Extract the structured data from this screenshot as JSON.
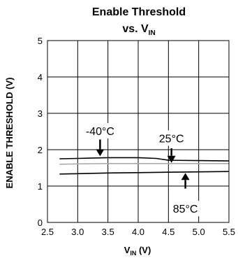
{
  "chart_data": {
    "type": "line",
    "title_line1": "Enable Threshold",
    "title_line2_prefix": "vs. V",
    "title_line2_sub": "IN",
    "xlabel_main": "V",
    "xlabel_sub": "IN",
    "xlabel_suffix": " (V)",
    "ylabel": "ENABLE THRESHOLD (V)",
    "xlim": [
      2.5,
      5.5
    ],
    "ylim": [
      0,
      5
    ],
    "xticks": [
      2.5,
      3.0,
      3.5,
      4.0,
      4.5,
      5.0,
      5.5
    ],
    "xtick_labels": [
      "2.5",
      "3.0",
      "3.5",
      "4.0",
      "4.5",
      "5.0",
      "5.5"
    ],
    "yticks": [
      0,
      1,
      2,
      3,
      4,
      5
    ],
    "ytick_labels": [
      "0",
      "1",
      "2",
      "3",
      "4",
      "5"
    ],
    "grid": true,
    "series": [
      {
        "name": "-40°C",
        "color": "#000000",
        "x": [
          2.7,
          3.0,
          3.5,
          4.0,
          4.3,
          4.5,
          5.0,
          5.5
        ],
        "y": [
          1.75,
          1.76,
          1.78,
          1.78,
          1.76,
          1.71,
          1.7,
          1.69
        ]
      },
      {
        "name": "25°C",
        "color": "#aaaaaa",
        "x": [
          2.7,
          3.0,
          3.5,
          4.0,
          4.5,
          5.0,
          5.5
        ],
        "y": [
          1.6,
          1.61,
          1.62,
          1.62,
          1.62,
          1.62,
          1.62
        ]
      },
      {
        "name": "85°C",
        "color": "#000000",
        "x": [
          2.7,
          3.0,
          3.5,
          4.0,
          4.5,
          5.0,
          5.5
        ],
        "y": [
          1.33,
          1.34,
          1.36,
          1.37,
          1.38,
          1.39,
          1.4
        ]
      }
    ],
    "annotations": [
      {
        "text": "-40°C",
        "label_x": 3.37,
        "label_y": 2.52,
        "arrow_from": [
          3.37,
          2.28
        ],
        "arrow_to": [
          3.37,
          1.82
        ]
      },
      {
        "text": "25°C",
        "label_x": 4.55,
        "label_y": 2.32,
        "arrow_from": [
          4.55,
          2.04
        ],
        "arrow_to": [
          4.55,
          1.64
        ]
      },
      {
        "text": "85°C",
        "label_x": 4.78,
        "label_y": 0.38,
        "arrow_from": [
          4.78,
          0.93
        ],
        "arrow_to": [
          4.78,
          1.36
        ]
      }
    ]
  }
}
